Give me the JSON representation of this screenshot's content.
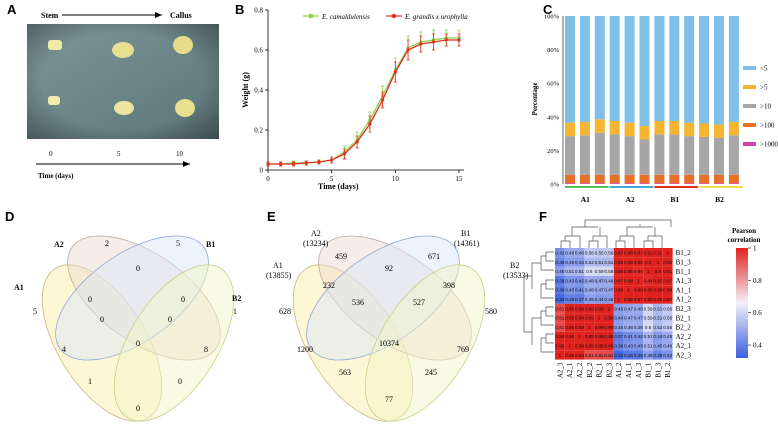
{
  "panels": {
    "A": "A",
    "B": "B",
    "C": "C",
    "D": "D",
    "E": "E",
    "F": "F"
  },
  "chart_data": [
    {
      "panel": "A",
      "type": "other",
      "stem_label": "Stem",
      "callus_label": "Callus",
      "day_ticks": [
        "0",
        "5",
        "10"
      ],
      "xlabel": "Time (days)"
    },
    {
      "panel": "B",
      "type": "line",
      "xlabel": "Time (days)",
      "ylabel": "Weight (g)",
      "xlim": [
        0,
        15
      ],
      "ylim": [
        0,
        0.8
      ],
      "x_ticks": [
        "0",
        "5",
        "10",
        "15"
      ],
      "y_ticks": [
        "0",
        "0.2",
        "0.4",
        "0.6",
        "0.8"
      ],
      "x": [
        0,
        1,
        2,
        3,
        4,
        5,
        6,
        7,
        8,
        9,
        10,
        11,
        12,
        13,
        14,
        15
      ],
      "series": [
        {
          "name": "E. camaldulensis",
          "color": "#8fd14f",
          "values": [
            0.03,
            0.03,
            0.035,
            0.035,
            0.04,
            0.05,
            0.09,
            0.15,
            0.25,
            0.37,
            0.5,
            0.61,
            0.64,
            0.65,
            0.66,
            0.66
          ],
          "err": [
            0.01,
            0.01,
            0.01,
            0.01,
            0.01,
            0.015,
            0.03,
            0.04,
            0.04,
            0.05,
            0.06,
            0.06,
            0.05,
            0.05,
            0.04,
            0.04
          ]
        },
        {
          "name": "E. grandis x urophylla",
          "color": "#e0301e",
          "values": [
            0.03,
            0.03,
            0.03,
            0.035,
            0.04,
            0.05,
            0.08,
            0.14,
            0.23,
            0.35,
            0.49,
            0.6,
            0.63,
            0.64,
            0.65,
            0.65
          ],
          "err": [
            0.01,
            0.01,
            0.01,
            0.01,
            0.01,
            0.015,
            0.025,
            0.03,
            0.04,
            0.04,
            0.05,
            0.05,
            0.04,
            0.04,
            0.03,
            0.03
          ]
        }
      ]
    },
    {
      "panel": "C",
      "type": "bar",
      "stacked": true,
      "ylabel": "Percentage",
      "y_ticks": [
        "0%",
        "20%",
        "40%",
        "60%",
        "80%",
        "100%"
      ],
      "group_labels": [
        "A1",
        "A2",
        "B1",
        "B2"
      ],
      "group_colors": [
        "#52c35a",
        "#4aa8d8",
        "#e0301e",
        "#f0e04a"
      ],
      "bars_per_group": 3,
      "legend": [
        {
          "name": "<5",
          "color": "#7fbfe8"
        },
        {
          "name": ">5",
          "color": "#f5b531"
        },
        {
          "name": ">10",
          "color": "#a6a6a6"
        },
        {
          "name": ">100",
          "color": "#e8702a"
        },
        {
          "name": ">1000",
          "color": "#d63fb4"
        }
      ],
      "series": [
        {
          "name": ">1000",
          "values": [
            0.5,
            0.5,
            0.5,
            0.5,
            0.5,
            0.5,
            0.5,
            0.5,
            0.5,
            0.5,
            0.5,
            0.5
          ]
        },
        {
          "name": ">100",
          "values": [
            5,
            5,
            5,
            5,
            5,
            5,
            5,
            5,
            5,
            5,
            5,
            5
          ]
        },
        {
          "name": ">10",
          "values": [
            23,
            23.5,
            25,
            24,
            23,
            21,
            24,
            24,
            23,
            22.5,
            22,
            23.5
          ]
        },
        {
          "name": ">5",
          "values": [
            8,
            8,
            8,
            8,
            8,
            8,
            8,
            8,
            8,
            8,
            8,
            8
          ]
        },
        {
          "name": "<5",
          "values": [
            63.5,
            63,
            61.5,
            62.5,
            63.5,
            65.5,
            62.5,
            62.5,
            63.5,
            64,
            64.5,
            63
          ]
        }
      ]
    },
    {
      "panel": "D",
      "type": "venn",
      "sets": [
        "A1",
        "A2",
        "B1",
        "B2"
      ],
      "regions": [
        "5",
        "2",
        "5",
        "1",
        "0",
        "0",
        "0",
        "0",
        "0",
        "4",
        "8",
        "0",
        "1",
        "0",
        "0"
      ]
    },
    {
      "panel": "E",
      "type": "venn",
      "sets": [
        "A1",
        "A2",
        "B1",
        "B2"
      ],
      "set_sizes": [
        "(13855)",
        "(13234)",
        "(14361)",
        "(13533)"
      ],
      "regions": [
        "628",
        "459",
        "671",
        "580",
        "232",
        "92",
        "398",
        "536",
        "527",
        "10374",
        "1200",
        "769",
        "563",
        "245",
        "77"
      ]
    },
    {
      "panel": "F",
      "type": "heatmap",
      "rows": [
        "B1_2",
        "B1_3",
        "B1_1",
        "A1_3",
        "A1_1",
        "A1_2",
        "B2_3",
        "B2_1",
        "B2_2",
        "A2_2",
        "A2_1",
        "A2_3"
      ],
      "cols": [
        "A2_3",
        "A2_1",
        "A2_2",
        "B2_2",
        "B2_1",
        "B2_3",
        "A1_2",
        "A1_1",
        "A1_3",
        "B1_1",
        "B1_3",
        "B1_2"
      ],
      "values": [
        [
          "0.42",
          "0.48",
          "0.48",
          "0.56",
          "0.55",
          "0.56",
          "0.87",
          "0.88",
          "0.87",
          "0.91",
          "0.91",
          "1"
        ],
        [
          "0.39",
          "0.45",
          "0.44",
          "0.52",
          "0.51",
          "0.51",
          "0.86",
          "0.86",
          "0.85",
          "0.9",
          "1",
          "0.91"
        ],
        [
          "0.45",
          "0.51",
          "0.51",
          "0.6",
          "0.59",
          "0.59",
          "0.85",
          "0.85",
          "0.84",
          "1",
          "0.9",
          "0.91"
        ],
        [
          "0.36",
          "0.43",
          "0.42",
          "0.48",
          "0.47",
          "0.48",
          "0.97",
          "0.98",
          "1",
          "0.84",
          "0.85",
          "0.87"
        ],
        [
          "0.36",
          "0.43",
          "0.41",
          "0.48",
          "0.47",
          "0.47",
          "0.96",
          "1",
          "0.98",
          "0.85",
          "0.86",
          "0.88"
        ],
        [
          "0.32",
          "0.38",
          "0.37",
          "0.45",
          "0.44",
          "0.45",
          "1",
          "0.96",
          "0.97",
          "0.85",
          "0.86",
          "0.87"
        ],
        [
          "0.81",
          "0.85",
          "0.88",
          "0.99",
          "0.99",
          "1",
          "0.45",
          "0.47",
          "0.48",
          "0.59",
          "0.51",
          "0.56"
        ],
        [
          "0.81",
          "0.85",
          "0.88",
          "0.99",
          "1",
          "0.99",
          "0.44",
          "0.47",
          "0.47",
          "0.59",
          "0.51",
          "0.55"
        ],
        [
          "0.81",
          "0.85",
          "0.89",
          "1",
          "0.99",
          "0.99",
          "0.45",
          "0.48",
          "0.48",
          "0.6",
          "0.52",
          "0.56"
        ],
        [
          "0.94",
          "0.98",
          "1",
          "0.89",
          "0.88",
          "0.88",
          "0.37",
          "0.41",
          "0.42",
          "0.51",
          "0.44",
          "0.48"
        ],
        [
          "0.96",
          "1",
          "0.98",
          "0.85",
          "0.85",
          "0.85",
          "0.38",
          "0.43",
          "0.43",
          "0.51",
          "0.45",
          "0.48"
        ],
        [
          "1",
          "0.96",
          "0.94",
          "0.81",
          "0.81",
          "0.81",
          "0.32",
          "0.36",
          "0.36",
          "0.45",
          "0.39",
          "0.42"
        ]
      ],
      "colorbar_title": [
        "Pearson",
        "correlation"
      ],
      "colorbar_ticks": [
        "1",
        "0.8",
        "0.6",
        "0.4"
      ],
      "colors": {
        "low": "#3a5fe0",
        "mid": "#f4f0f8",
        "high": "#e0221e"
      }
    }
  ]
}
